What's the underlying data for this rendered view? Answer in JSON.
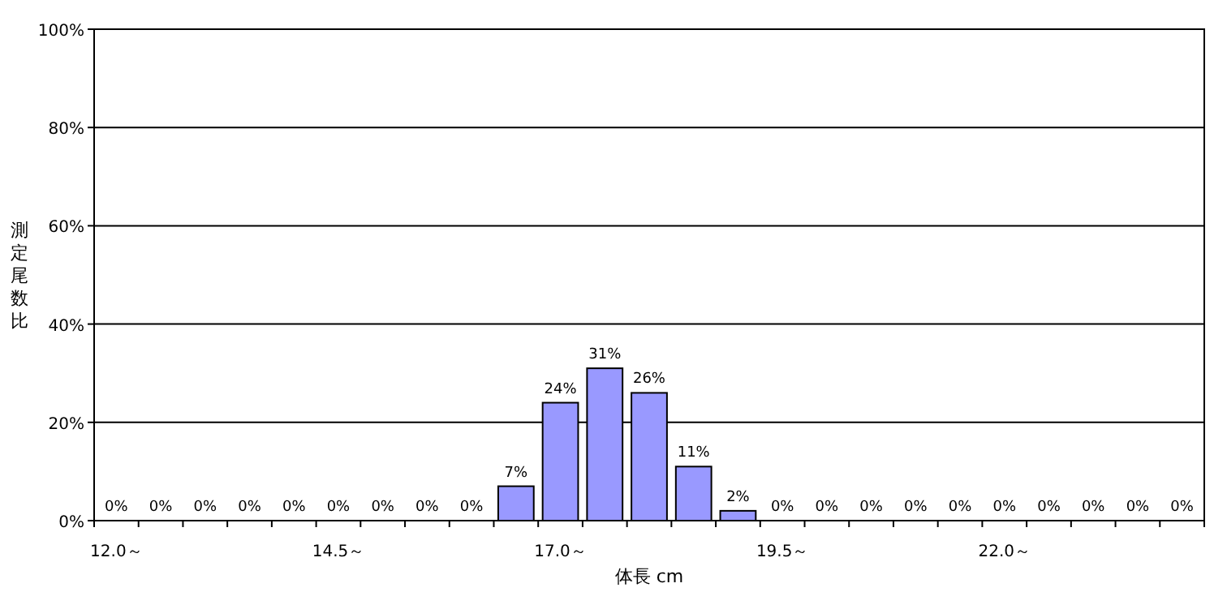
{
  "chart_data": {
    "type": "bar",
    "xlabel": "体長 cm",
    "ylabel": "測定尾数比",
    "categories": [
      "12.0～",
      null,
      null,
      null,
      null,
      "14.5～",
      null,
      null,
      null,
      null,
      "17.0～",
      null,
      null,
      null,
      null,
      "19.5～",
      null,
      null,
      null,
      null,
      "22.0～",
      null,
      null,
      null,
      null
    ],
    "values": [
      0,
      0,
      0,
      0,
      0,
      0,
      0,
      0,
      0,
      7,
      24,
      31,
      26,
      11,
      2,
      0,
      0,
      0,
      0,
      0,
      0,
      0,
      0,
      0,
      0
    ],
    "value_labels": [
      "0%",
      "0%",
      "0%",
      "0%",
      "0%",
      "0%",
      "0%",
      "0%",
      "0%",
      "7%",
      "24%",
      "31%",
      "26%",
      "11%",
      "2%",
      "0%",
      "0%",
      "0%",
      "0%",
      "0%",
      "0%",
      "0%",
      "0%",
      "0%",
      "0%"
    ],
    "color": "#9999ff",
    "ylim": [
      0,
      100
    ],
    "yticks": [
      {
        "value": 0,
        "label": "0%"
      },
      {
        "value": 20,
        "label": "20%"
      },
      {
        "value": 40,
        "label": "40%"
      },
      {
        "value": 60,
        "label": "60%"
      },
      {
        "value": 80,
        "label": "80%"
      },
      {
        "value": 100,
        "label": "100%"
      }
    ],
    "grid": "y"
  }
}
